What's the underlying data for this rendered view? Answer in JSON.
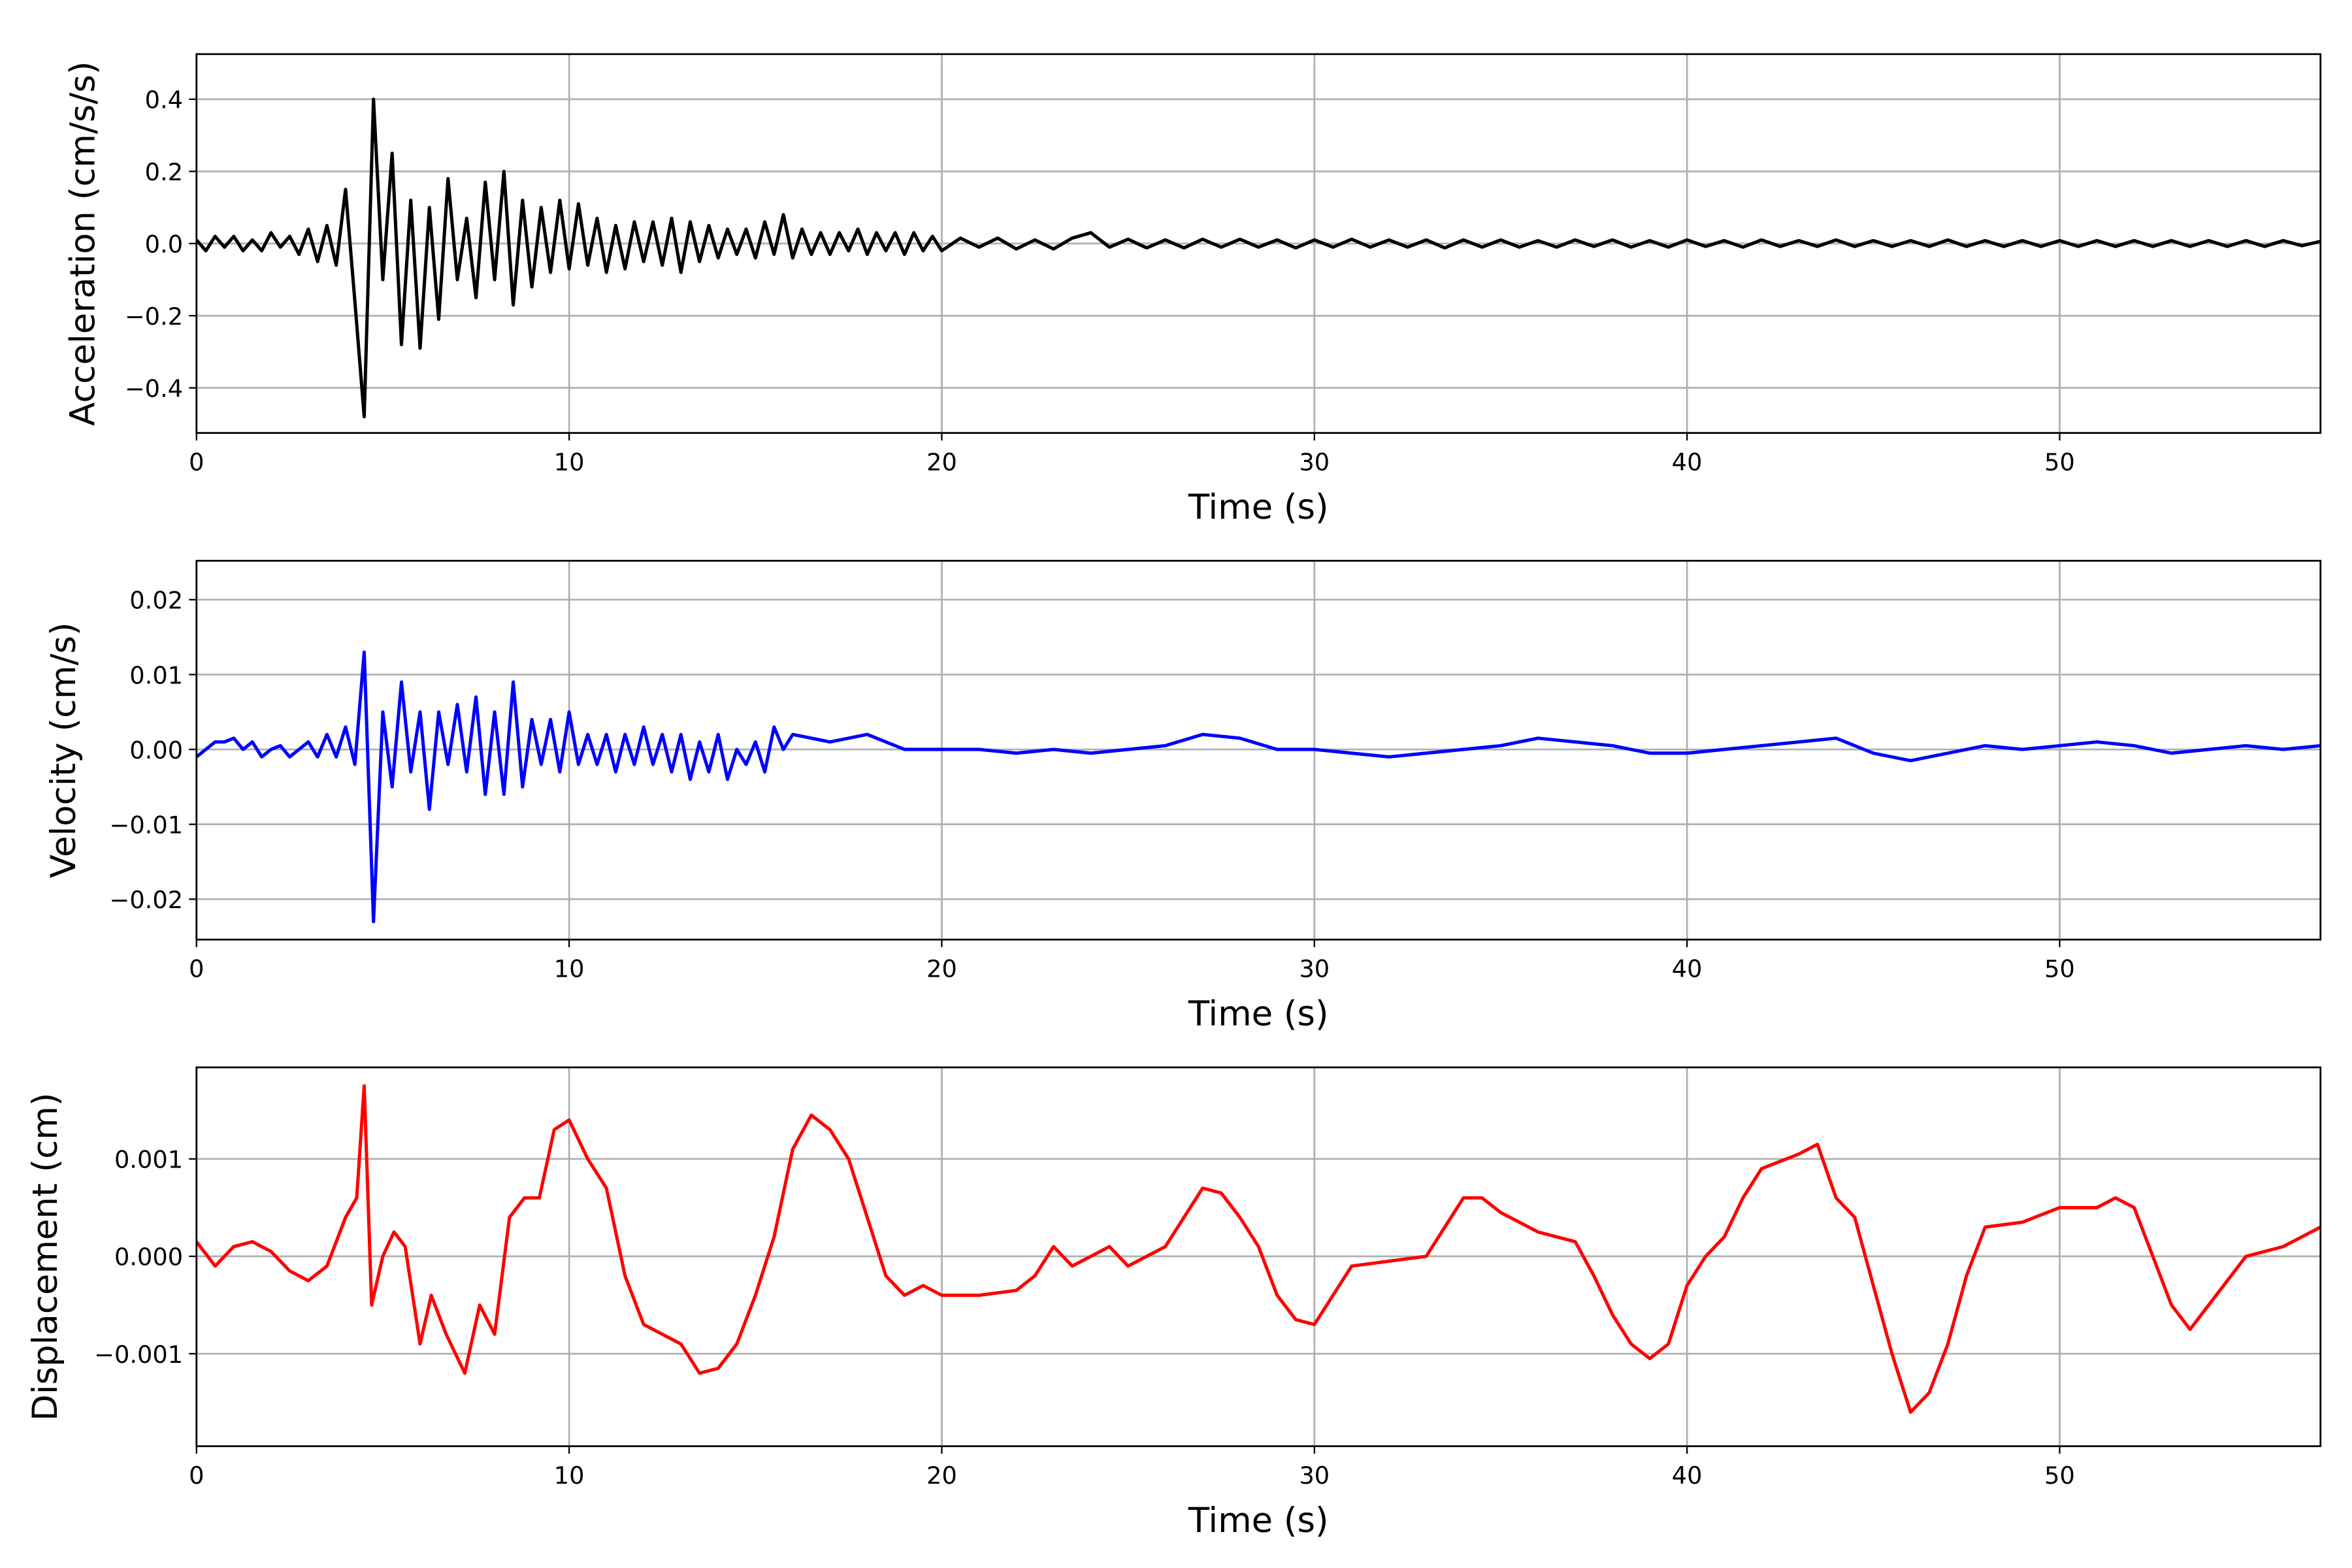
{
  "chart_data": [
    {
      "type": "line",
      "xlabel": "Time (s)",
      "ylabel": "Acceleration (cm/s/s)",
      "color": "#000000",
      "grid": true,
      "xlim": [
        0,
        57
      ],
      "xticks": [
        0,
        10,
        20,
        30,
        40,
        50
      ],
      "ylim": [
        -0.525,
        0.525
      ],
      "yticks": [
        {
          "value": -0.4,
          "label": "−0.4"
        },
        {
          "value": -0.2,
          "label": "−0.2"
        },
        {
          "value": 0,
          "label": "0.0"
        },
        {
          "value": 0.2,
          "label": "0.2"
        },
        {
          "value": 0.4,
          "label": "0.4"
        }
      ],
      "x": [
        0,
        0.25,
        0.5,
        0.75,
        1,
        1.25,
        1.5,
        1.75,
        2,
        2.25,
        2.5,
        2.75,
        3,
        3.25,
        3.5,
        3.75,
        4,
        4.25,
        4.5,
        4.75,
        5,
        5.25,
        5.5,
        5.75,
        6,
        6.25,
        6.5,
        6.75,
        7,
        7.25,
        7.5,
        7.75,
        8,
        8.25,
        8.5,
        8.75,
        9,
        9.25,
        9.5,
        9.75,
        10,
        10.25,
        10.5,
        10.75,
        11,
        11.25,
        11.5,
        11.75,
        12,
        12.25,
        12.5,
        12.75,
        13,
        13.25,
        13.5,
        13.75,
        14,
        14.25,
        14.5,
        14.75,
        15,
        15.25,
        15.5,
        15.75,
        16,
        16.25,
        16.5,
        16.75,
        17,
        17.25,
        17.5,
        17.75,
        18,
        18.25,
        18.5,
        18.75,
        19,
        19.25,
        19.5,
        19.75,
        20,
        20.5,
        21,
        21.5,
        22,
        22.5,
        23,
        23.5,
        24,
        24.5,
        25,
        25.5,
        26,
        26.5,
        27,
        27.5,
        28,
        28.5,
        29,
        29.5,
        30,
        30.5,
        31,
        31.5,
        32,
        32.5,
        33,
        33.5,
        34,
        34.5,
        35,
        35.5,
        36,
        36.5,
        37,
        37.5,
        38,
        38.5,
        39,
        39.5,
        40,
        40.5,
        41,
        41.5,
        42,
        42.5,
        43,
        43.5,
        44,
        44.5,
        45,
        45.5,
        46,
        46.5,
        47,
        47.5,
        48,
        48.5,
        49,
        49.5,
        50,
        50.5,
        51,
        51.5,
        52,
        52.5,
        53,
        53.5,
        54,
        54.5,
        55,
        55.5,
        56,
        56.5,
        57
      ],
      "values": [
        0.01,
        -0.02,
        0.02,
        -0.01,
        0.02,
        -0.02,
        0.01,
        -0.02,
        0.03,
        -0.01,
        0.02,
        -0.03,
        0.04,
        -0.05,
        0.05,
        -0.06,
        0.15,
        -0.16,
        -0.48,
        0.4,
        -0.1,
        0.25,
        -0.28,
        0.12,
        -0.29,
        0.1,
        -0.21,
        0.18,
        -0.1,
        0.07,
        -0.15,
        0.17,
        -0.1,
        0.2,
        -0.17,
        0.12,
        -0.12,
        0.1,
        -0.08,
        0.12,
        -0.07,
        0.11,
        -0.06,
        0.07,
        -0.08,
        0.05,
        -0.07,
        0.06,
        -0.05,
        0.06,
        -0.06,
        0.07,
        -0.08,
        0.06,
        -0.05,
        0.05,
        -0.04,
        0.04,
        -0.03,
        0.04,
        -0.04,
        0.06,
        -0.03,
        0.08,
        -0.04,
        0.04,
        -0.03,
        0.03,
        -0.03,
        0.03,
        -0.02,
        0.04,
        -0.03,
        0.03,
        -0.02,
        0.03,
        -0.03,
        0.03,
        -0.02,
        0.02,
        -0.02,
        0.015,
        -0.01,
        0.015,
        -0.015,
        0.01,
        -0.015,
        0.015,
        0.03,
        -0.01,
        0.012,
        -0.012,
        0.01,
        -0.012,
        0.012,
        -0.01,
        0.012,
        -0.01,
        0.01,
        -0.012,
        0.01,
        -0.01,
        0.012,
        -0.01,
        0.01,
        -0.01,
        0.01,
        -0.012,
        0.01,
        -0.01,
        0.01,
        -0.01,
        0.008,
        -0.01,
        0.01,
        -0.008,
        0.01,
        -0.01,
        0.008,
        -0.01,
        0.01,
        -0.008,
        0.008,
        -0.01,
        0.01,
        -0.008,
        0.008,
        -0.008,
        0.01,
        -0.008,
        0.008,
        -0.008,
        0.008,
        -0.008,
        0.01,
        -0.008,
        0.008,
        -0.008,
        0.008,
        -0.008,
        0.008,
        -0.008,
        0.008,
        -0.008,
        0.008,
        -0.008,
        0.008,
        -0.008,
        0.008,
        -0.008,
        0.008,
        -0.008,
        0.008,
        -0.006,
        0.006
      ]
    },
    {
      "type": "line",
      "xlabel": "Time (s)",
      "ylabel": "Velocity (cm/s)",
      "color": "#0000ff",
      "grid": true,
      "xlim": [
        0,
        57
      ],
      "xticks": [
        0,
        10,
        20,
        30,
        40,
        50
      ],
      "ylim": [
        -0.0254,
        0.0252
      ],
      "yticks": [
        {
          "value": -0.02,
          "label": "−0.02"
        },
        {
          "value": -0.01,
          "label": "−0.01"
        },
        {
          "value": 0,
          "label": "0.00"
        },
        0.01,
        0.02
      ],
      "x": [
        0,
        0.25,
        0.5,
        0.75,
        1,
        1.25,
        1.5,
        1.75,
        2,
        2.25,
        2.5,
        2.75,
        3,
        3.25,
        3.5,
        3.75,
        4,
        4.25,
        4.5,
        4.75,
        5,
        5.25,
        5.5,
        5.75,
        6,
        6.25,
        6.5,
        6.75,
        7,
        7.25,
        7.5,
        7.75,
        8,
        8.25,
        8.5,
        8.75,
        9,
        9.25,
        9.5,
        9.75,
        10,
        10.25,
        10.5,
        10.75,
        11,
        11.25,
        11.5,
        11.75,
        12,
        12.25,
        12.5,
        12.75,
        13,
        13.25,
        13.5,
        13.75,
        14,
        14.25,
        14.5,
        14.75,
        15,
        15.25,
        15.5,
        15.75,
        16,
        17,
        18,
        19,
        20,
        21,
        22,
        23,
        24,
        25,
        26,
        27,
        28,
        29,
        30,
        31,
        32,
        33,
        34,
        35,
        36,
        37,
        38,
        39,
        40,
        41,
        42,
        43,
        44,
        45,
        46,
        47,
        48,
        49,
        50,
        51,
        52,
        53,
        54,
        55,
        56,
        57
      ],
      "values": [
        -0.001,
        0,
        0.001,
        0.001,
        0.0015,
        0,
        0.001,
        -0.001,
        0,
        0.0005,
        -0.001,
        0,
        0.001,
        -0.001,
        0.002,
        -0.001,
        0.003,
        -0.002,
        0.013,
        -0.023,
        0.005,
        -0.005,
        0.009,
        -0.003,
        0.005,
        -0.008,
        0.005,
        -0.002,
        0.006,
        -0.003,
        0.007,
        -0.006,
        0.005,
        -0.006,
        0.009,
        -0.005,
        0.004,
        -0.002,
        0.004,
        -0.003,
        0.005,
        -0.002,
        0.002,
        -0.002,
        0.002,
        -0.003,
        0.002,
        -0.002,
        0.003,
        -0.002,
        0.002,
        -0.003,
        0.002,
        -0.004,
        0.001,
        -0.003,
        0.002,
        -0.004,
        0,
        -0.002,
        0.001,
        -0.003,
        0.003,
        0,
        0.002,
        0.001,
        0.002,
        0,
        0,
        0,
        -0.0005,
        0,
        -0.0005,
        0,
        0.0005,
        0.002,
        0.0015,
        0,
        0,
        -0.0005,
        -0.001,
        -0.0005,
        0,
        0.0005,
        0.0015,
        0.001,
        0.0005,
        -0.0005,
        -0.0005,
        0,
        0.0005,
        0.001,
        0.0015,
        -0.0005,
        -0.0015,
        -0.0005,
        0.0005,
        0,
        0.0005,
        0.001,
        0.0005,
        -0.0005,
        0,
        0.0005,
        0,
        0.0005
      ]
    },
    {
      "type": "line",
      "xlabel": "Time (s)",
      "ylabel": "Displacement (cm)",
      "color": "#ff0000",
      "grid": true,
      "xlim": [
        0,
        57
      ],
      "xticks": [
        0,
        10,
        20,
        30,
        40,
        50
      ],
      "ylim": [
        -0.00195,
        0.00194
      ],
      "yticks": [
        {
          "value": -0.001,
          "label": "−0.001"
        },
        {
          "value": 0,
          "label": "0.000"
        },
        0.001
      ],
      "x": [
        0,
        0.5,
        1,
        1.5,
        2,
        2.5,
        3,
        3.5,
        4,
        4.3,
        4.5,
        4.7,
        5,
        5.3,
        5.6,
        6,
        6.3,
        6.7,
        7.2,
        7.6,
        8,
        8.4,
        8.8,
        9.2,
        9.6,
        10,
        10.5,
        11,
        11.5,
        12,
        12.5,
        13,
        13.5,
        14,
        14.5,
        15,
        15.5,
        16,
        16.5,
        17,
        17.5,
        18,
        18.5,
        19,
        19.5,
        20,
        21,
        22,
        22.5,
        23,
        23.5,
        24,
        24.5,
        25,
        26,
        26.5,
        27,
        27.5,
        28,
        28.5,
        29,
        29.5,
        30,
        30.5,
        31,
        32,
        33,
        33.5,
        34,
        34.5,
        35,
        36,
        37,
        37.5,
        38,
        38.5,
        39,
        39.5,
        40,
        40.5,
        41,
        41.5,
        42,
        43,
        43.5,
        44,
        44.5,
        45,
        45.5,
        46,
        46.5,
        47,
        47.5,
        48,
        49,
        50,
        51,
        51.5,
        52,
        52.5,
        53,
        53.5,
        54,
        55,
        56,
        57
      ],
      "values": [
        0.00015,
        -0.0001,
        0.0001,
        0.00015,
        5e-05,
        -0.00015,
        -0.00025,
        -0.0001,
        0.0004,
        0.0006,
        0.00175,
        -0.0005,
        0,
        0.00025,
        0.0001,
        -0.0009,
        -0.0004,
        -0.0008,
        -0.0012,
        -0.0005,
        -0.0008,
        0.0004,
        0.0006,
        0.0006,
        0.0013,
        0.0014,
        0.001,
        0.0007,
        -0.0002,
        -0.0007,
        -0.0008,
        -0.0009,
        -0.0012,
        -0.00115,
        -0.0009,
        -0.0004,
        0.0002,
        0.0011,
        0.00145,
        0.0013,
        0.001,
        0.0004,
        -0.0002,
        -0.0004,
        -0.0003,
        -0.0004,
        -0.0004,
        -0.00035,
        -0.0002,
        0.0001,
        -0.0001,
        0,
        0.0001,
        -0.0001,
        0.0001,
        0.0004,
        0.0007,
        0.00065,
        0.0004,
        0.0001,
        -0.0004,
        -0.00065,
        -0.0007,
        -0.0004,
        -0.0001,
        -5e-05,
        0,
        0.0003,
        0.0006,
        0.0006,
        0.00045,
        0.00025,
        0.00015,
        -0.0002,
        -0.0006,
        -0.0009,
        -0.00105,
        -0.0009,
        -0.0003,
        0,
        0.0002,
        0.0006,
        0.0009,
        0.00105,
        0.00115,
        0.0006,
        0.0004,
        -0.0003,
        -0.001,
        -0.0016,
        -0.0014,
        -0.0009,
        -0.0002,
        0.0003,
        0.00035,
        0.0005,
        0.0005,
        0.0006,
        0.0005,
        0,
        -0.0005,
        -0.00075,
        -0.0005,
        0,
        0.0001,
        0.0003
      ]
    }
  ]
}
